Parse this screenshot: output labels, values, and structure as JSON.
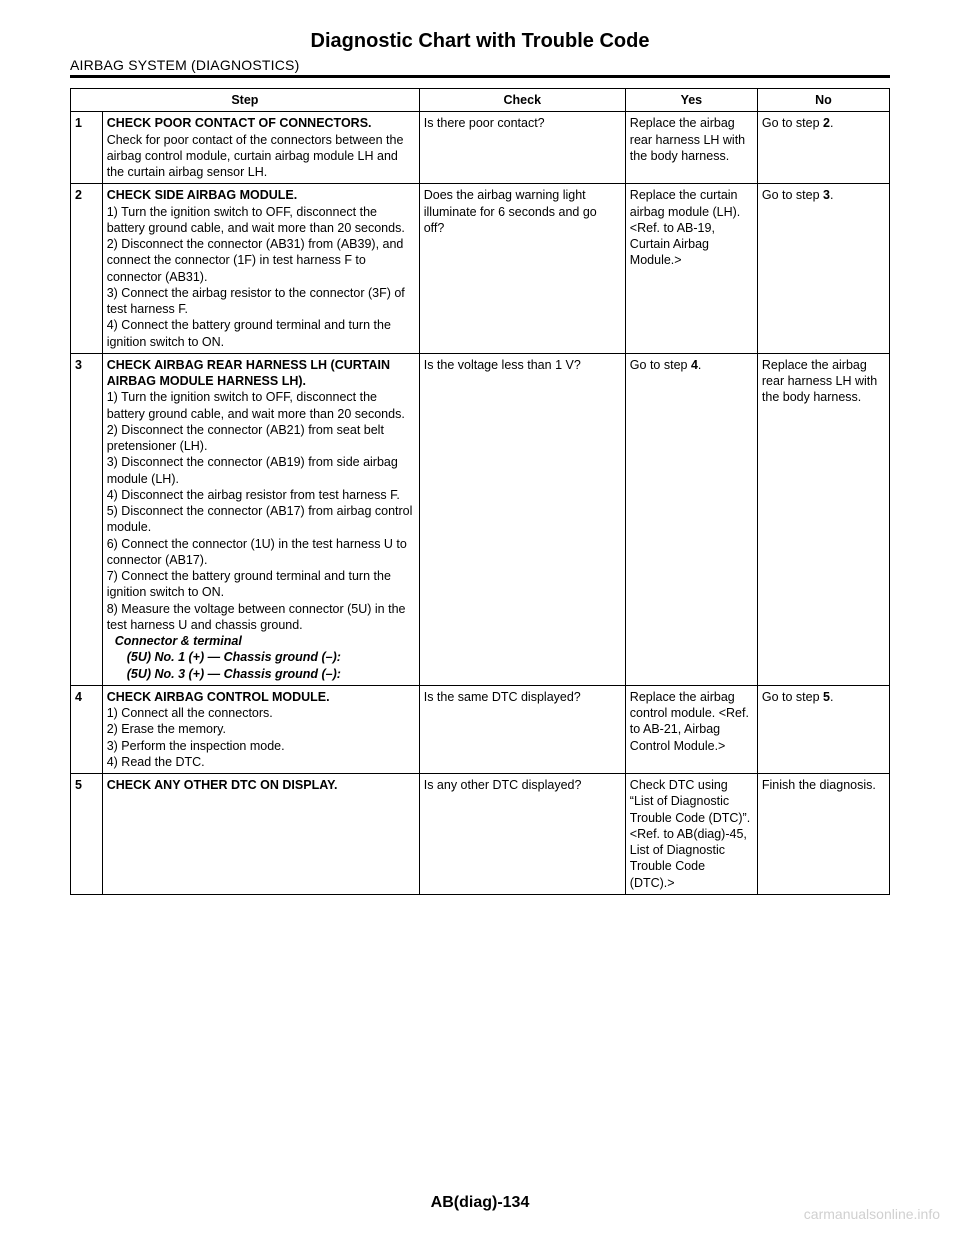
{
  "page_title": "Diagnostic Chart with Trouble Code",
  "section_title": "AIRBAG SYSTEM (DIAGNOSTICS)",
  "headers": {
    "step": "Step",
    "check": "Check",
    "yes": "Yes",
    "no": "No"
  },
  "rows": [
    {
      "num": "1",
      "step_title": "CHECK POOR CONTACT OF CONNECTORS.",
      "step_body": "Check for poor contact of the connectors between the airbag control module, curtain airbag module LH and the curtain airbag sensor LH.",
      "check": "Is there poor contact?",
      "yes": "Replace the airbag rear harness LH with the body harness.",
      "no_prefix": "Go to step ",
      "no_bold": "2",
      "no_suffix": "."
    },
    {
      "num": "2",
      "step_title": "CHECK SIDE AIRBAG MODULE.",
      "step_body": "1)  Turn the ignition switch to OFF, disconnect the battery ground cable, and wait more than 20 seconds.\n2)  Disconnect the connector (AB31) from (AB39), and connect the connector (1F) in test harness F to connector (AB31).\n3)  Connect the airbag resistor to the connector (3F) of test harness F.\n4)  Connect the battery ground terminal and turn the ignition switch to ON.",
      "check": "Does the airbag warning light illuminate for 6 seconds and go off?",
      "yes": "Replace the curtain airbag module (LH). <Ref. to AB-19, Curtain Airbag Module.>",
      "no_prefix": "Go to step ",
      "no_bold": "3",
      "no_suffix": "."
    },
    {
      "num": "3",
      "step_title": "CHECK AIRBAG REAR HARNESS LH (CURTAIN AIRBAG MODULE HARNESS LH).",
      "step_body": "1)  Turn the ignition switch to OFF, disconnect the battery ground cable, and wait more than 20 seconds.\n2)  Disconnect the connector (AB21) from seat belt pretensioner (LH).\n3)  Disconnect the connector (AB19) from side airbag module (LH).\n4)  Disconnect the airbag resistor from test harness F.\n5)  Disconnect the connector (AB17) from airbag control module.\n6)  Connect the connector (1U) in the test harness U to connector (AB17).\n7)  Connect the battery ground terminal and turn the ignition switch to ON.\n8)  Measure the voltage between connector (5U) in the test harness U and chassis ground.",
      "step_italic_lead": "Connector & terminal",
      "step_italic_1": "(5U) No. 1 (+) — Chassis ground (–):",
      "step_italic_2": "(5U) No. 3 (+) — Chassis ground (–):",
      "check": "Is the voltage less than 1 V?",
      "yes_prefix": "Go to step ",
      "yes_bold": "4",
      "yes_suffix": ".",
      "no": "Replace the airbag rear harness LH with the body harness."
    },
    {
      "num": "4",
      "step_title": "CHECK AIRBAG CONTROL MODULE.",
      "step_body": "1)  Connect all the connectors.\n2)  Erase the memory.\n3)  Perform the inspection mode.\n4)  Read the DTC.",
      "check": "Is the same DTC displayed?",
      "yes": "Replace the airbag control module. <Ref. to AB-21, Airbag Control Module.>",
      "no_prefix": "Go to step ",
      "no_bold": "5",
      "no_suffix": "."
    },
    {
      "num": "5",
      "step_title": "CHECK ANY OTHER DTC ON DISPLAY.",
      "step_body": "",
      "check": "Is any other DTC displayed?",
      "yes": "Check DTC using “List of Diagnostic Trouble Code (DTC)”. <Ref. to AB(diag)-45, List of Diagnostic Trouble Code (DTC).>",
      "no": "Finish the diagnosis."
    }
  ],
  "footer": "AB(diag)-134",
  "watermark": "carmanualsonline.info"
}
